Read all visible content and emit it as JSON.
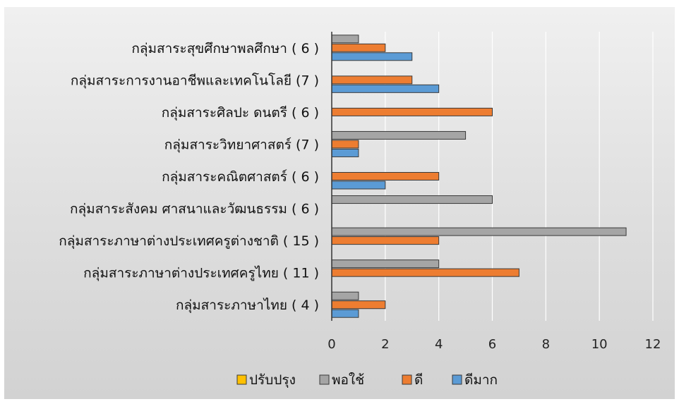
{
  "chart_data": {
    "type": "bar",
    "orientation": "horizontal",
    "categories": [
      "กลุ่มสาระภาษาไทย  ( 4 )",
      "กลุ่มสาระภาษาต่างประเทศครูไทย ( 11 )",
      "กลุ่มสาระภาษาต่างประเทศครูต่างชาติ ( 15 )",
      "กลุ่มสาระสังคม ศาสนาและวัฒนธรรม  ( 6 )",
      "กลุ่มสาระคณิตศาสตร์ ( 6 )",
      "กลุ่มสาระวิทยาศาสตร์ (7 )",
      "กลุ่มสาระศิลปะ ดนตรี ( 6 )",
      "กลุ่มสาระการงานอาชีพและเทคโนโลยี (7 )",
      "กลุ่มสาระสุขศึกษาพลศึกษา ( 6 )"
    ],
    "series": [
      {
        "name": "ดีมาก",
        "color": "#5b9bd5",
        "values": [
          1,
          0,
          0,
          0,
          2,
          1,
          0,
          4,
          3
        ]
      },
      {
        "name": "ดี",
        "color": "#ed7d31",
        "values": [
          2,
          7,
          4,
          0,
          4,
          1,
          6,
          3,
          2
        ]
      },
      {
        "name": "พอใช้",
        "color": "#a5a5a5",
        "values": [
          1,
          4,
          11,
          6,
          0,
          5,
          0,
          0,
          1
        ]
      },
      {
        "name": "ปรับปรุง",
        "color": "#ffc000",
        "values": [
          0,
          0,
          0,
          0,
          0,
          0,
          0,
          0,
          0
        ]
      }
    ],
    "legend_order": [
      "ปรับปรุง",
      "พอใช้",
      "ดี",
      "ดีมาก"
    ],
    "xlim": [
      0,
      12
    ],
    "xticks": [
      "0",
      "2",
      "4",
      "6",
      "8",
      "10",
      "12"
    ],
    "grid": true,
    "legend_position": "bottom",
    "title": "",
    "xlabel": "",
    "ylabel": ""
  }
}
